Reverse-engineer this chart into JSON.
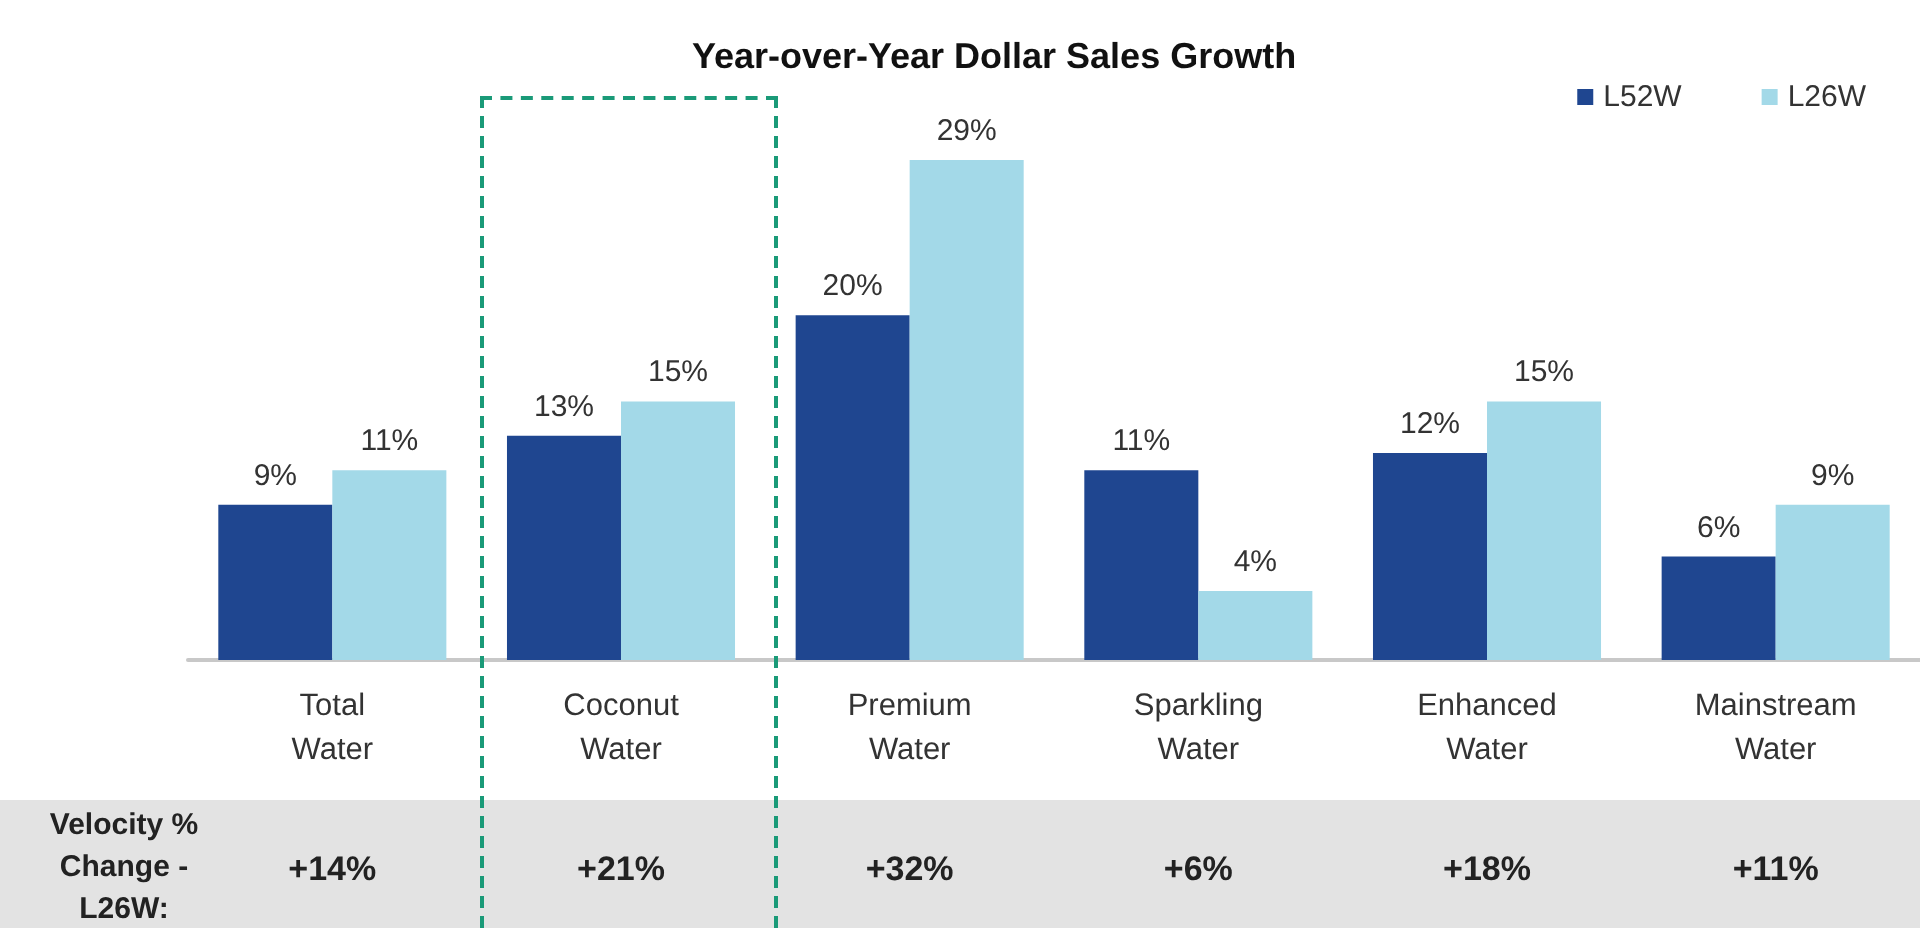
{
  "chart_data": {
    "type": "bar",
    "title": "Year-over-Year Dollar Sales Growth",
    "categories": [
      "Total Water",
      "Coconut Water",
      "Premium Water",
      "Sparkling Water",
      "Enhanced Water",
      "Mainstream Water"
    ],
    "series": [
      {
        "name": "L52W",
        "color": "#1f4690",
        "values": [
          9,
          13,
          20,
          11,
          12,
          6
        ],
        "value_labels": [
          "9%",
          "13%",
          "20%",
          "11%",
          "12%",
          "6%"
        ]
      },
      {
        "name": "L26W",
        "color": "#a3d9e8",
        "values": [
          11,
          15,
          29,
          4,
          15,
          9
        ],
        "value_labels": [
          "11%",
          "15%",
          "29%",
          "4%",
          "15%",
          "9%"
        ]
      }
    ],
    "legend": "top right",
    "annotations": [
      "Velocity % Change - L26W:",
      "+14%",
      "+21%",
      "+32%",
      "+6%",
      "+18%",
      "+11%"
    ]
  }
}
